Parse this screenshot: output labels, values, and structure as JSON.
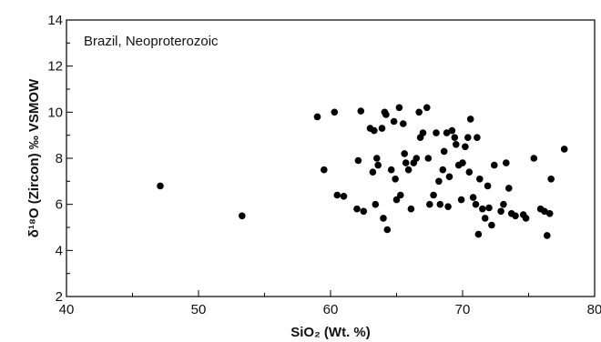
{
  "chart_data": {
    "type": "scatter",
    "annotation": "Brazil, Neoproterozoic",
    "xlabel": "SiO₂ (Wt. %)",
    "ylabel": "δ¹⁸O (Zircon) ‰ VSMOW",
    "xlim": [
      40,
      80
    ],
    "ylim": [
      2,
      14
    ],
    "xticks": [
      40,
      50,
      60,
      70,
      80
    ],
    "yticks": [
      2,
      4,
      6,
      8,
      10,
      12,
      14
    ],
    "grid": false,
    "points": [
      [
        47.1,
        6.8
      ],
      [
        53.3,
        5.5
      ],
      [
        59.0,
        9.8
      ],
      [
        59.5,
        7.5
      ],
      [
        60.3,
        10.0
      ],
      [
        60.5,
        6.4
      ],
      [
        61.0,
        6.35
      ],
      [
        62.0,
        5.8
      ],
      [
        62.1,
        7.9
      ],
      [
        62.3,
        10.05
      ],
      [
        62.5,
        5.7
      ],
      [
        63.0,
        9.3
      ],
      [
        63.2,
        7.4
      ],
      [
        63.3,
        9.2
      ],
      [
        63.4,
        6.0
      ],
      [
        63.5,
        8.0
      ],
      [
        63.6,
        7.7
      ],
      [
        63.9,
        9.3
      ],
      [
        64.0,
        5.4
      ],
      [
        64.1,
        10.0
      ],
      [
        64.2,
        9.9
      ],
      [
        64.3,
        4.9
      ],
      [
        64.6,
        7.5
      ],
      [
        64.8,
        9.6
      ],
      [
        64.9,
        7.1
      ],
      [
        65.0,
        6.2
      ],
      [
        65.2,
        10.2
      ],
      [
        65.3,
        6.4
      ],
      [
        65.5,
        9.5
      ],
      [
        65.6,
        8.2
      ],
      [
        65.7,
        7.8
      ],
      [
        65.9,
        7.5
      ],
      [
        66.1,
        5.8
      ],
      [
        66.3,
        7.8
      ],
      [
        66.5,
        8.0
      ],
      [
        66.7,
        10.0
      ],
      [
        66.8,
        8.9
      ],
      [
        67.0,
        9.1
      ],
      [
        67.3,
        10.2
      ],
      [
        67.4,
        8.0
      ],
      [
        67.5,
        6.0
      ],
      [
        67.8,
        6.4
      ],
      [
        68.0,
        9.1
      ],
      [
        68.2,
        7.0
      ],
      [
        68.3,
        6.0
      ],
      [
        68.5,
        7.5
      ],
      [
        68.6,
        8.3
      ],
      [
        68.8,
        9.1
      ],
      [
        68.9,
        5.9
      ],
      [
        69.0,
        7.2
      ],
      [
        69.2,
        9.2
      ],
      [
        69.4,
        8.9
      ],
      [
        69.5,
        8.6
      ],
      [
        69.7,
        7.7
      ],
      [
        69.9,
        6.2
      ],
      [
        70.0,
        7.8
      ],
      [
        70.2,
        8.5
      ],
      [
        70.4,
        8.9
      ],
      [
        70.5,
        7.4
      ],
      [
        70.6,
        9.7
      ],
      [
        70.8,
        6.3
      ],
      [
        71.0,
        6.0
      ],
      [
        71.1,
        8.9
      ],
      [
        71.2,
        4.7
      ],
      [
        71.3,
        7.1
      ],
      [
        71.5,
        5.8
      ],
      [
        71.7,
        5.4
      ],
      [
        71.9,
        6.8
      ],
      [
        72.0,
        5.85
      ],
      [
        72.2,
        5.1
      ],
      [
        72.4,
        7.7
      ],
      [
        72.9,
        5.7
      ],
      [
        73.1,
        6.0
      ],
      [
        73.3,
        7.8
      ],
      [
        73.5,
        6.7
      ],
      [
        73.7,
        5.6
      ],
      [
        74.0,
        5.5
      ],
      [
        74.6,
        5.55
      ],
      [
        74.8,
        5.4
      ],
      [
        75.4,
        8.0
      ],
      [
        75.9,
        5.8
      ],
      [
        76.2,
        5.7
      ],
      [
        76.4,
        4.65
      ],
      [
        76.6,
        5.6
      ],
      [
        76.7,
        7.1
      ],
      [
        77.7,
        8.4
      ]
    ]
  }
}
